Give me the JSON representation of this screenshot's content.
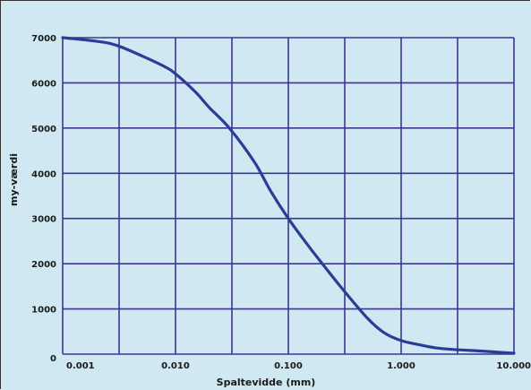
{
  "chart_data": {
    "type": "line",
    "title": "",
    "xlabel": "Spaltevidde (mm)",
    "ylabel": "my-værdi",
    "x_scale": "log",
    "xlim": [
      0.001,
      10.0
    ],
    "ylim": [
      0,
      7000
    ],
    "x_ticks": [
      "0.001",
      "0.010",
      "0.100",
      "1.000",
      "10.000"
    ],
    "x_tick_values": [
      0.001,
      0.01,
      0.1,
      1.0,
      10.0
    ],
    "y_ticks": [
      "0",
      "1000",
      "2000",
      "3000",
      "4000",
      "5000",
      "6000",
      "7000"
    ],
    "y_tick_values": [
      0,
      1000,
      2000,
      3000,
      4000,
      5000,
      6000,
      7000
    ],
    "grid": true,
    "colors": {
      "plot_background": "#cfe8f2",
      "grid": "#3d3591",
      "line": "#2a3d96"
    },
    "series": [
      {
        "name": "",
        "x": [
          0.001,
          0.002,
          0.003,
          0.005,
          0.008,
          0.01,
          0.015,
          0.02,
          0.03,
          0.05,
          0.07,
          0.1,
          0.15,
          0.2,
          0.3,
          0.5,
          0.7,
          1.0,
          1.5,
          2.0,
          3.0,
          5.0,
          7.0,
          10.0
        ],
        "y": [
          7000,
          6920,
          6830,
          6600,
          6360,
          6200,
          5800,
          5450,
          5000,
          4250,
          3600,
          3000,
          2400,
          2000,
          1450,
          800,
          480,
          300,
          200,
          140,
          100,
          70,
          45,
          20
        ]
      }
    ]
  }
}
